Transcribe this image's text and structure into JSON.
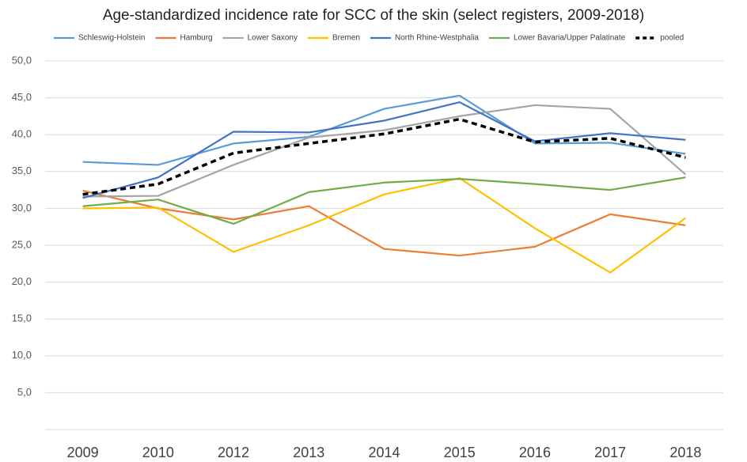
{
  "chart_data": {
    "type": "line",
    "title": "Age-standardized incidence rate for SCC of the skin (select registers, 2009-2018)",
    "categories": [
      "2009",
      "2010",
      "2012",
      "2013",
      "2014",
      "2015",
      "2016",
      "2017",
      "2018"
    ],
    "ylim": [
      0,
      50
    ],
    "yticks": [
      {
        "value": 5,
        "label": "5,0"
      },
      {
        "value": 10,
        "label": "10,0"
      },
      {
        "value": 15,
        "label": "15,0"
      },
      {
        "value": 20,
        "label": "20,0"
      },
      {
        "value": 25,
        "label": "25,0"
      },
      {
        "value": 30,
        "label": "30,0"
      },
      {
        "value": 35,
        "label": "35,0"
      },
      {
        "value": 40,
        "label": "40,0"
      },
      {
        "value": 45,
        "label": "45,0"
      },
      {
        "value": 50,
        "label": "50,0"
      }
    ],
    "grid": true,
    "legend": "top",
    "series": [
      {
        "name": "Schleswig-Holstein",
        "color": "#5b9bd5",
        "values": [
          36.3,
          35.9,
          38.8,
          39.7,
          43.5,
          45.3,
          38.8,
          38.9,
          37.4
        ]
      },
      {
        "name": "Hamburg",
        "color": "#ed7d31",
        "values": [
          32.4,
          30.0,
          28.5,
          30.3,
          24.5,
          23.6,
          24.8,
          29.2,
          27.7
        ]
      },
      {
        "name": "Lower Saxony",
        "color": "#a5a5a5",
        "values": [
          31.6,
          31.7,
          35.9,
          39.6,
          40.6,
          42.5,
          44.0,
          43.5,
          34.6
        ]
      },
      {
        "name": "Bremen",
        "color": "#ffc000",
        "values": [
          30.0,
          30.1,
          24.1,
          27.7,
          31.9,
          34.1,
          27.3,
          21.3,
          28.7
        ]
      },
      {
        "name": "North Rhine-Westphalia",
        "color": "#4472c4",
        "values": [
          31.4,
          34.2,
          40.4,
          40.3,
          41.9,
          44.4,
          39.1,
          40.2,
          39.3
        ]
      },
      {
        "name": "Lower Bavaria/Upper Palatinate",
        "color": "#70ad47",
        "values": [
          30.3,
          31.2,
          27.9,
          32.2,
          33.5,
          34.0,
          33.3,
          32.5,
          34.2
        ]
      },
      {
        "name": "pooled",
        "color": "#000000",
        "dashed": true,
        "values": [
          31.9,
          33.3,
          37.5,
          38.8,
          40.1,
          42.1,
          39.0,
          39.5,
          36.9
        ]
      }
    ]
  }
}
